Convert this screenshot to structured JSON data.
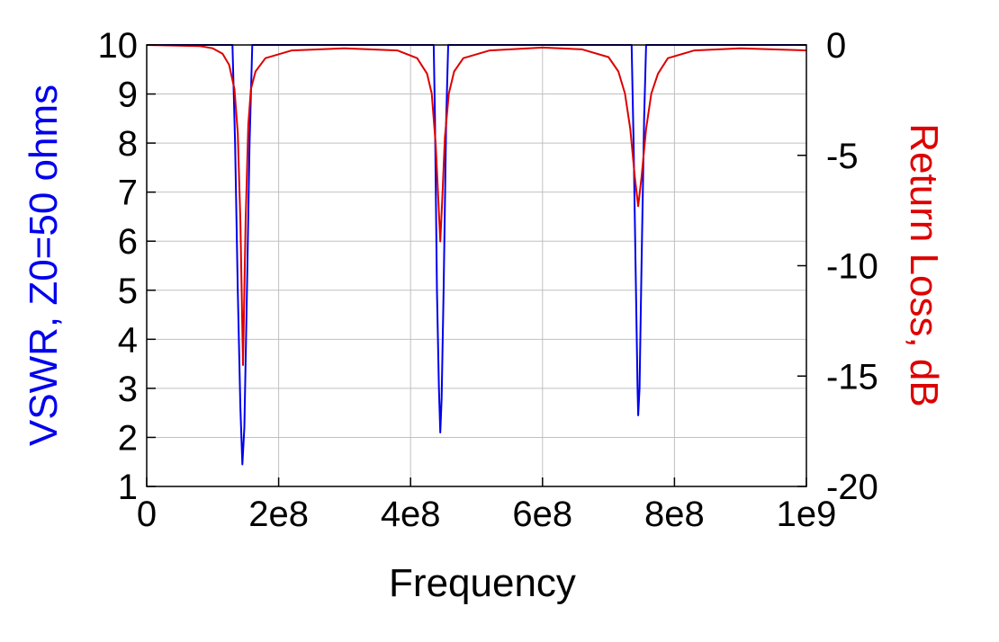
{
  "chart_data": {
    "type": "line",
    "xlabel": "Frequency",
    "ylabel_left": "VSWR, Z0=50 ohms",
    "ylabel_right": "Return Loss, dB",
    "xlim": [
      0,
      1000000000
    ],
    "ylim_left": [
      1,
      10
    ],
    "ylim_right": [
      -20,
      0
    ],
    "x_ticks": [
      0,
      200000000,
      400000000,
      600000000,
      800000000,
      1000000000
    ],
    "x_tick_labels": [
      "0",
      "2e8",
      "4e8",
      "6e8",
      "8e8",
      "1e9"
    ],
    "y_left_ticks": [
      1,
      2,
      3,
      4,
      5,
      6,
      7,
      8,
      9,
      10
    ],
    "y_left_tick_labels": [
      "1",
      "2",
      "3",
      "4",
      "5",
      "6",
      "7",
      "8",
      "9",
      "10"
    ],
    "y_right_ticks": [
      -20,
      -15,
      -10,
      -5,
      0
    ],
    "y_right_tick_labels": [
      "-20",
      "-15",
      "-10",
      "-5",
      "0"
    ],
    "grid": true,
    "colors": {
      "vswr": "#0000ee",
      "return_loss": "#dd0000",
      "axes": "#000000",
      "grid": "#c0c0c0"
    },
    "series": [
      {
        "axis": "left",
        "color": "#0000ee",
        "points": [
          [
            0,
            10
          ],
          [
            130000000,
            10
          ],
          [
            134000000,
            8
          ],
          [
            138000000,
            5
          ],
          [
            142000000,
            2.6
          ],
          [
            145000000,
            1.45
          ],
          [
            148000000,
            2.2
          ],
          [
            152000000,
            5
          ],
          [
            156000000,
            8
          ],
          [
            160000000,
            10
          ],
          [
            435000000,
            10
          ],
          [
            437000000,
            8.5
          ],
          [
            440000000,
            5
          ],
          [
            443000000,
            3
          ],
          [
            445000000,
            2.1
          ],
          [
            447000000,
            2.8
          ],
          [
            450000000,
            5
          ],
          [
            454000000,
            8.5
          ],
          [
            457000000,
            10
          ],
          [
            735000000,
            10
          ],
          [
            738000000,
            8
          ],
          [
            741000000,
            5.5
          ],
          [
            744000000,
            3
          ],
          [
            745000000,
            2.45
          ],
          [
            747000000,
            3
          ],
          [
            750000000,
            5.5
          ],
          [
            754000000,
            8.5
          ],
          [
            757000000,
            10
          ],
          [
            1000000000,
            10
          ]
        ]
      },
      {
        "axis": "right",
        "color": "#dd0000",
        "points": [
          [
            0,
            0
          ],
          [
            80000000,
            -0.05
          ],
          [
            100000000,
            -0.15
          ],
          [
            115000000,
            -0.4
          ],
          [
            125000000,
            -0.9
          ],
          [
            133000000,
            -2
          ],
          [
            138000000,
            -4
          ],
          [
            142000000,
            -8
          ],
          [
            146000000,
            -14.5
          ],
          [
            150000000,
            -8
          ],
          [
            154000000,
            -3.6
          ],
          [
            158000000,
            -2
          ],
          [
            165000000,
            -1.2
          ],
          [
            180000000,
            -0.6
          ],
          [
            220000000,
            -0.25
          ],
          [
            300000000,
            -0.15
          ],
          [
            380000000,
            -0.25
          ],
          [
            410000000,
            -0.6
          ],
          [
            425000000,
            -1.3
          ],
          [
            432000000,
            -2.2
          ],
          [
            438000000,
            -4.5
          ],
          [
            442000000,
            -7
          ],
          [
            445000000,
            -8.9
          ],
          [
            448000000,
            -7
          ],
          [
            452000000,
            -4.2
          ],
          [
            458000000,
            -2.2
          ],
          [
            466000000,
            -1.2
          ],
          [
            480000000,
            -0.6
          ],
          [
            520000000,
            -0.25
          ],
          [
            600000000,
            -0.12
          ],
          [
            660000000,
            -0.2
          ],
          [
            700000000,
            -0.55
          ],
          [
            715000000,
            -1.2
          ],
          [
            725000000,
            -2.2
          ],
          [
            733000000,
            -3.8
          ],
          [
            740000000,
            -6
          ],
          [
            745000000,
            -7.3
          ],
          [
            750000000,
            -6
          ],
          [
            757000000,
            -3.8
          ],
          [
            765000000,
            -2.2
          ],
          [
            775000000,
            -1.3
          ],
          [
            790000000,
            -0.6
          ],
          [
            830000000,
            -0.25
          ],
          [
            900000000,
            -0.15
          ],
          [
            1000000000,
            -0.25
          ]
        ]
      }
    ]
  }
}
